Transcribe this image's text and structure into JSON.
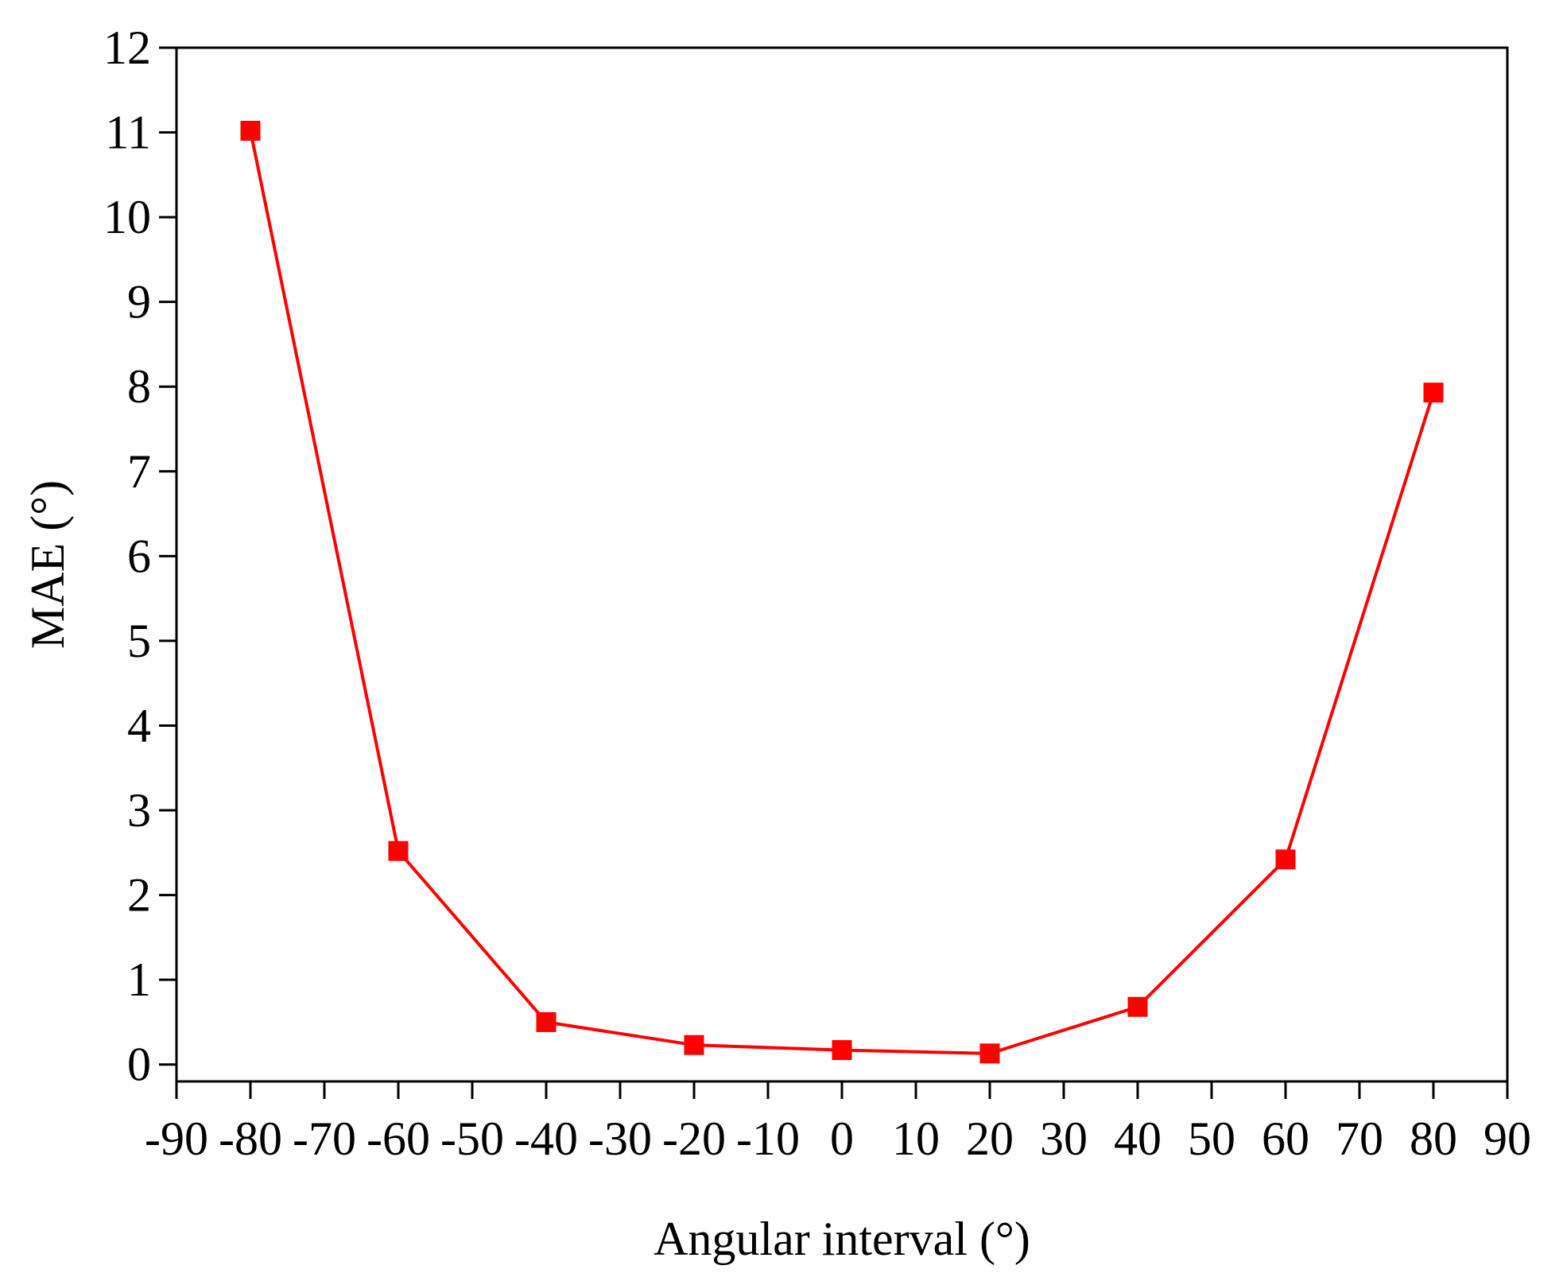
{
  "chart_data": {
    "type": "line",
    "xlabel": "Angular interval (°)",
    "ylabel": "MAE (°)",
    "x": [
      -80,
      -60,
      -40,
      -20,
      0,
      20,
      40,
      60,
      80
    ],
    "series": [
      {
        "color": "#ff0000",
        "values": [
          11.02,
          2.52,
          0.5,
          0.23,
          0.17,
          0.13,
          0.68,
          2.42,
          7.93
        ]
      }
    ],
    "xlim": [
      -90,
      90
    ],
    "xticks": [
      -90,
      -80,
      -70,
      -60,
      -50,
      -40,
      -30,
      -20,
      -10,
      0,
      10,
      20,
      30,
      40,
      50,
      60,
      70,
      80,
      90
    ],
    "ylim": [
      -0.2,
      12
    ],
    "yticks": [
      0,
      1,
      2,
      3,
      4,
      5,
      6,
      7,
      8,
      9,
      10,
      11,
      12
    ],
    "marker": "square",
    "grid": false
  }
}
